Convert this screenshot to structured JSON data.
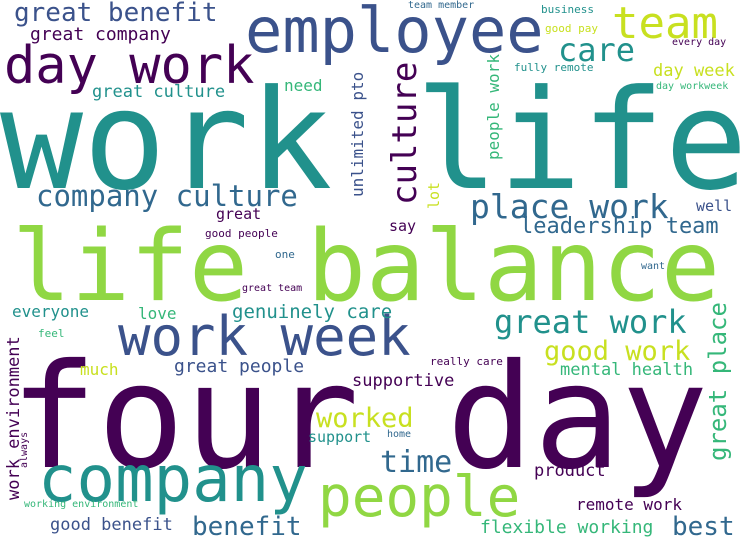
{
  "palette": {
    "purple": "#440154",
    "indigo": "#3b528b",
    "blue": "#31688e",
    "teal": "#21918c",
    "green": "#35b779",
    "lime": "#90d743",
    "yellow": "#c8e020"
  },
  "words": [
    {
      "id": "four-day",
      "text": "four day",
      "color": "purple"
    },
    {
      "id": "work-life",
      "text": "work life",
      "color": "teal"
    },
    {
      "id": "life-balance",
      "text": "life balance",
      "color": "lime"
    },
    {
      "id": "company",
      "text": "company",
      "color": "teal"
    },
    {
      "id": "employee",
      "text": "employee",
      "color": "indigo"
    },
    {
      "id": "people",
      "text": "people",
      "color": "lime"
    },
    {
      "id": "work-week",
      "text": "work week",
      "color": "indigo"
    },
    {
      "id": "day-work",
      "text": "day work",
      "color": "purple"
    },
    {
      "id": "team",
      "text": "team",
      "color": "yellow"
    },
    {
      "id": "great-benefit",
      "text": "great benefit",
      "color": "indigo"
    },
    {
      "id": "company-culture",
      "text": "company culture",
      "color": "blue"
    },
    {
      "id": "place-work",
      "text": "place work",
      "color": "blue"
    },
    {
      "id": "culture",
      "text": "culture",
      "color": "purple"
    },
    {
      "id": "great-work",
      "text": "great work",
      "color": "teal"
    },
    {
      "id": "care",
      "text": "care",
      "color": "teal"
    },
    {
      "id": "time",
      "text": "time",
      "color": "blue"
    },
    {
      "id": "good-work",
      "text": "good work",
      "color": "yellow"
    },
    {
      "id": "great-place",
      "text": "great place",
      "color": "green"
    },
    {
      "id": "worked",
      "text": "worked",
      "color": "yellow"
    },
    {
      "id": "benefit",
      "text": "benefit",
      "color": "blue"
    },
    {
      "id": "best",
      "text": "best",
      "color": "blue"
    },
    {
      "id": "leadership-team",
      "text": "leadership team",
      "color": "blue"
    },
    {
      "id": "great-company",
      "text": "great company",
      "color": "purple"
    },
    {
      "id": "great-culture",
      "text": "great culture",
      "color": "teal"
    },
    {
      "id": "day-week",
      "text": "day week",
      "color": "yellow"
    },
    {
      "id": "genuinely-care",
      "text": "genuinely care",
      "color": "teal"
    },
    {
      "id": "great-people",
      "text": "great people",
      "color": "indigo"
    },
    {
      "id": "mental-health",
      "text": "mental health",
      "color": "green"
    },
    {
      "id": "supportive",
      "text": "supportive",
      "color": "purple"
    },
    {
      "id": "product",
      "text": "product",
      "color": "purple"
    },
    {
      "id": "remote-work",
      "text": "remote work",
      "color": "purple"
    },
    {
      "id": "flexible-working",
      "text": "flexible working",
      "color": "green"
    },
    {
      "id": "good-benefit",
      "text": "good benefit",
      "color": "indigo"
    },
    {
      "id": "work-environment",
      "text": "work environment",
      "color": "purple"
    },
    {
      "id": "unlimited-pto",
      "text": "unlimited pto",
      "color": "indigo"
    },
    {
      "id": "people-work",
      "text": "people work",
      "color": "green"
    },
    {
      "id": "everyone",
      "text": "everyone",
      "color": "teal"
    },
    {
      "id": "love",
      "text": "love",
      "color": "green"
    },
    {
      "id": "much",
      "text": "much",
      "color": "yellow"
    },
    {
      "id": "support",
      "text": "support",
      "color": "teal"
    },
    {
      "id": "need",
      "text": "need",
      "color": "green"
    },
    {
      "id": "great",
      "text": "great",
      "color": "purple"
    },
    {
      "id": "say",
      "text": "say",
      "color": "purple"
    },
    {
      "id": "lot",
      "text": "lot",
      "color": "yellow"
    },
    {
      "id": "well",
      "text": "well",
      "color": "indigo"
    },
    {
      "id": "good-people",
      "text": "good people",
      "color": "purple"
    },
    {
      "id": "one",
      "text": "one",
      "color": "blue"
    },
    {
      "id": "great-team",
      "text": "great team",
      "color": "purple"
    },
    {
      "id": "feel",
      "text": "feel",
      "color": "green"
    },
    {
      "id": "always",
      "text": "always",
      "color": "purple"
    },
    {
      "id": "working-environment",
      "text": "working environment",
      "color": "green"
    },
    {
      "id": "really-care",
      "text": "really care",
      "color": "purple"
    },
    {
      "id": "home",
      "text": "home",
      "color": "blue"
    },
    {
      "id": "want",
      "text": "want",
      "color": "blue"
    },
    {
      "id": "team-member",
      "text": "team member",
      "color": "blue"
    },
    {
      "id": "business",
      "text": "business",
      "color": "teal"
    },
    {
      "id": "good-pay",
      "text": "good pay",
      "color": "yellow"
    },
    {
      "id": "every-day",
      "text": "every day",
      "color": "purple"
    },
    {
      "id": "fully-remote",
      "text": "fully remote",
      "color": "teal"
    },
    {
      "id": "day-workweek",
      "text": "day workweek",
      "color": "green"
    }
  ]
}
